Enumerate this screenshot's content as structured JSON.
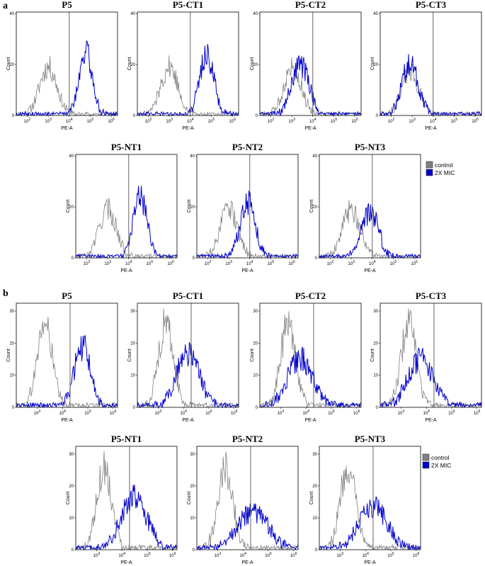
{
  "chart_data": [
    {
      "panel": "a",
      "type": "line",
      "kind": "flow-cytometry-histogram",
      "xlabel": "PE-A",
      "ylabel": "Count",
      "xscale": "log",
      "xlim": [
        30,
        2000000
      ],
      "ylim": [
        0,
        40
      ],
      "yticks": [
        0,
        20,
        40
      ],
      "xticks": [
        "10^2",
        "10^3",
        "10^4",
        "10^5",
        "10^6"
      ],
      "gate_x": 10000,
      "legend": [
        {
          "label": "control",
          "color": "#808080"
        },
        {
          "label": "2X MIC",
          "color": "#0000cc"
        }
      ],
      "plots": [
        {
          "title": "P5",
          "gate_x": 10000,
          "series": [
            {
              "name": "control",
              "color": "#808080",
              "peak_x": 1000,
              "peak_y": 19,
              "width_decades": 0.42
            },
            {
              "name": "2X MIC",
              "color": "#0000cc",
              "peak_x": 60000,
              "peak_y": 25,
              "width_decades": 0.32
            }
          ]
        },
        {
          "title": "P5-CT1",
          "gate_x": 10000,
          "series": [
            {
              "name": "control",
              "color": "#808080",
              "peak_x": 1000,
              "peak_y": 19,
              "width_decades": 0.42
            },
            {
              "name": "2X MIC",
              "color": "#0000cc",
              "peak_x": 60000,
              "peak_y": 24,
              "width_decades": 0.34
            }
          ]
        },
        {
          "title": "P5-CT2",
          "gate_x": 10000,
          "series": [
            {
              "name": "control",
              "color": "#808080",
              "peak_x": 1100,
              "peak_y": 19,
              "width_decades": 0.42
            },
            {
              "name": "2X MIC",
              "color": "#0000cc",
              "peak_x": 2500,
              "peak_y": 20,
              "width_decades": 0.42
            }
          ]
        },
        {
          "title": "P5-CT3",
          "gate_x": 10000,
          "series": [
            {
              "name": "control",
              "color": "#808080",
              "peak_x": 800,
              "peak_y": 18,
              "width_decades": 0.4
            },
            {
              "name": "2X MIC",
              "color": "#0000cc",
              "peak_x": 800,
              "peak_y": 20,
              "width_decades": 0.4
            }
          ]
        },
        {
          "title": "P5-NT1",
          "gate_x": 10000,
          "series": [
            {
              "name": "control",
              "color": "#808080",
              "peak_x": 1000,
              "peak_y": 19,
              "width_decades": 0.42
            },
            {
              "name": "2X MIC",
              "color": "#0000cc",
              "peak_x": 35000,
              "peak_y": 24,
              "width_decades": 0.33
            }
          ]
        },
        {
          "title": "P5-NT2",
          "gate_x": 10000,
          "series": [
            {
              "name": "control",
              "color": "#808080",
              "peak_x": 1000,
              "peak_y": 19,
              "width_decades": 0.42
            },
            {
              "name": "2X MIC",
              "color": "#0000cc",
              "peak_x": 8000,
              "peak_y": 22,
              "width_decades": 0.36
            }
          ]
        },
        {
          "title": "P5-NT3",
          "gate_x": 10000,
          "series": [
            {
              "name": "control",
              "color": "#808080",
              "peak_x": 1000,
              "peak_y": 19,
              "width_decades": 0.42
            },
            {
              "name": "2X MIC",
              "color": "#0000cc",
              "peak_x": 8000,
              "peak_y": 18,
              "width_decades": 0.4
            }
          ]
        }
      ]
    },
    {
      "panel": "b",
      "type": "line",
      "kind": "flow-cytometry-histogram",
      "xlabel": "PE-A",
      "ylabel": "Count",
      "xscale": "log",
      "xlim": [
        150,
        1500000
      ],
      "ylim": [
        0,
        32
      ],
      "yticks": [
        0,
        10,
        20,
        30
      ],
      "xticks": [
        "10^3",
        "10^4",
        "10^5",
        "10^6"
      ],
      "gate_x": 20000,
      "legend": [
        {
          "label": "control",
          "color": "#808080"
        },
        {
          "label": "2X MIC",
          "color": "#0000cc"
        }
      ],
      "plots": [
        {
          "title": "P5",
          "gate_x": 20000,
          "series": [
            {
              "name": "control",
              "color": "#808080",
              "peak_x": 2000,
              "peak_y": 26,
              "width_decades": 0.3
            },
            {
              "name": "2X MIC",
              "color": "#0000cc",
              "peak_x": 60000,
              "peak_y": 19,
              "width_decades": 0.32
            }
          ]
        },
        {
          "title": "P5-CT1",
          "gate_x": 20000,
          "series": [
            {
              "name": "control",
              "color": "#808080",
              "peak_x": 2000,
              "peak_y": 26,
              "width_decades": 0.3
            },
            {
              "name": "2X MIC",
              "color": "#0000cc",
              "peak_x": 15000,
              "peak_y": 17,
              "width_decades": 0.45
            }
          ]
        },
        {
          "title": "P5-CT2",
          "gate_x": 20000,
          "series": [
            {
              "name": "control",
              "color": "#808080",
              "peak_x": 2000,
              "peak_y": 26,
              "width_decades": 0.3
            },
            {
              "name": "2X MIC",
              "color": "#0000cc",
              "peak_x": 6000,
              "peak_y": 15,
              "width_decades": 0.5
            }
          ]
        },
        {
          "title": "P5-CT3",
          "gate_x": 20000,
          "series": [
            {
              "name": "control",
              "color": "#808080",
              "peak_x": 2000,
              "peak_y": 26,
              "width_decades": 0.3
            },
            {
              "name": "2X MIC",
              "color": "#0000cc",
              "peak_x": 6000,
              "peak_y": 15,
              "width_decades": 0.5
            }
          ]
        },
        {
          "title": "P5-NT1",
          "gate_x": 20000,
          "series": [
            {
              "name": "control",
              "color": "#808080",
              "peak_x": 2000,
              "peak_y": 26,
              "width_decades": 0.3
            },
            {
              "name": "2X MIC",
              "color": "#0000cc",
              "peak_x": 30000,
              "peak_y": 17,
              "width_decades": 0.5
            }
          ]
        },
        {
          "title": "P5-NT2",
          "gate_x": 20000,
          "series": [
            {
              "name": "control",
              "color": "#808080",
              "peak_x": 2000,
              "peak_y": 26,
              "width_decades": 0.3
            },
            {
              "name": "2X MIC",
              "color": "#0000cc",
              "peak_x": 25000,
              "peak_y": 12,
              "width_decades": 0.6
            }
          ]
        },
        {
          "title": "P5-NT3",
          "gate_x": 20000,
          "series": [
            {
              "name": "control",
              "color": "#808080",
              "peak_x": 2000,
              "peak_y": 26,
              "width_decades": 0.3
            },
            {
              "name": "2X MIC",
              "color": "#0000cc",
              "peak_x": 20000,
              "peak_y": 14,
              "width_decades": 0.55
            }
          ]
        }
      ]
    }
  ]
}
